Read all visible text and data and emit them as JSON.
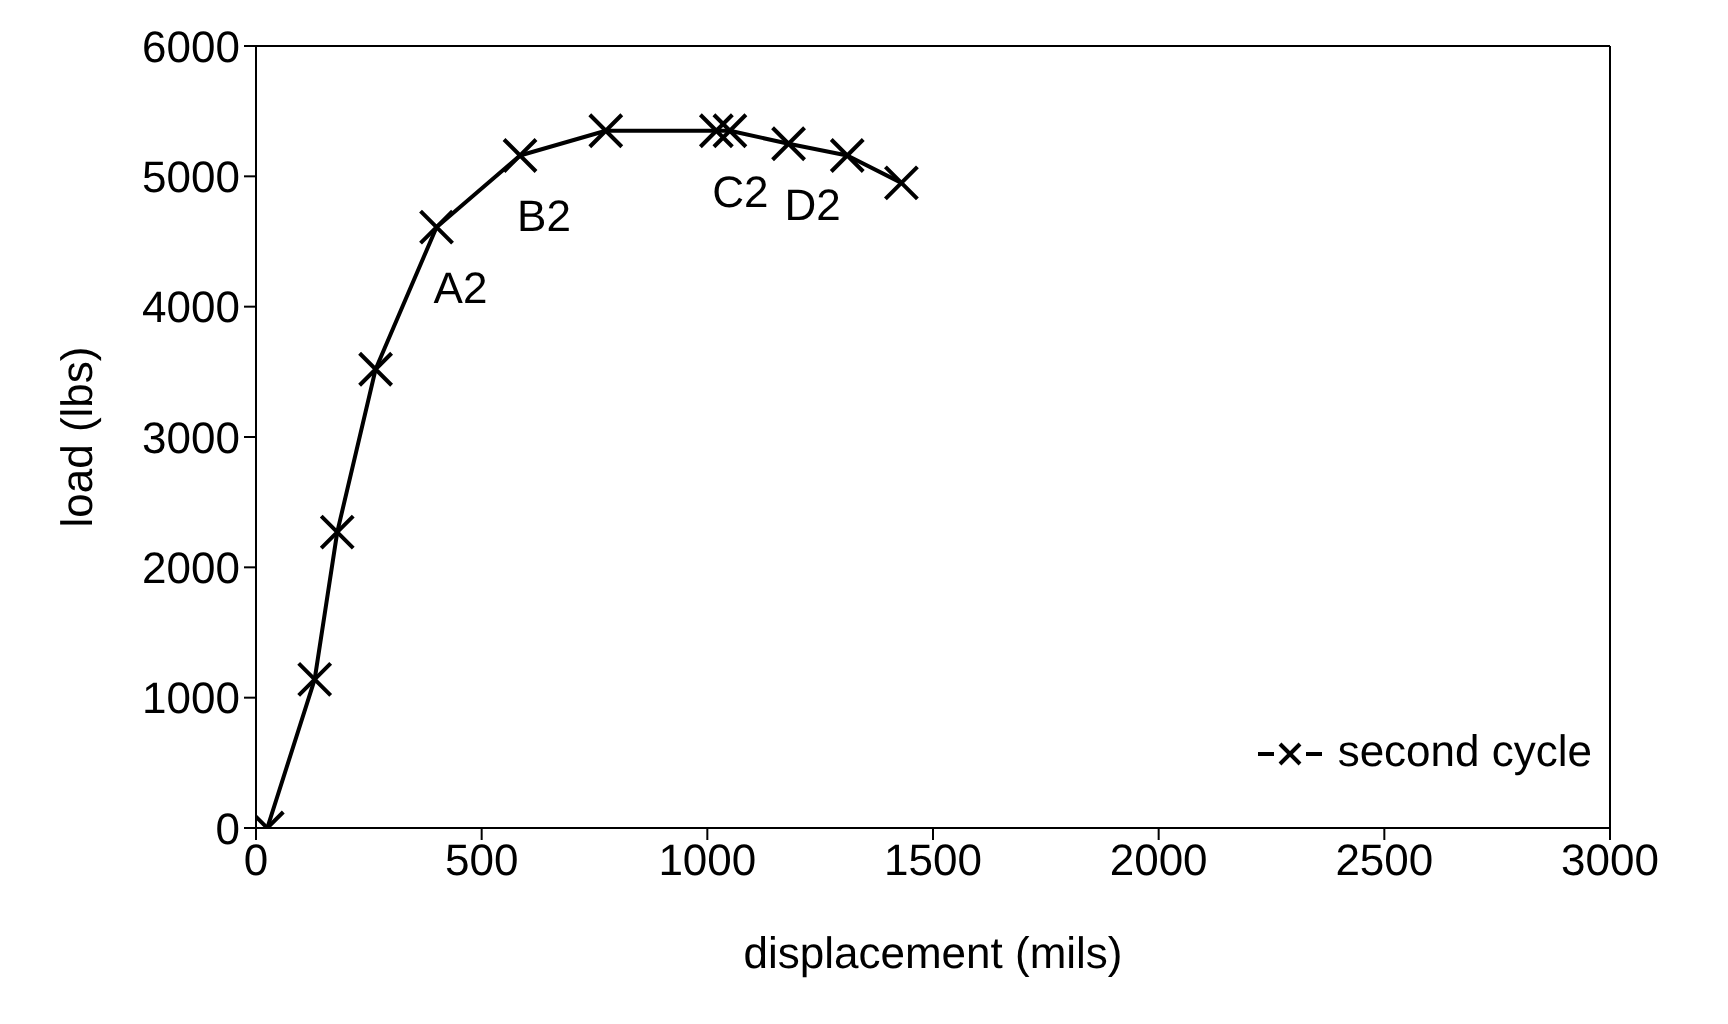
{
  "chart_data": {
    "type": "line",
    "xlabel": "displacement (mils)",
    "ylabel": "load (lbs)",
    "xlim": [
      0,
      3000
    ],
    "xticks": [
      0,
      500,
      1000,
      1500,
      2000,
      2500,
      3000
    ],
    "ylim": [
      0,
      6000
    ],
    "yticks": [
      0,
      1000,
      2000,
      3000,
      4000,
      5000,
      6000
    ],
    "legend": "bottom right",
    "marker": "cross",
    "line_style": "solid",
    "series": [
      {
        "name": "second cycle",
        "color": "#000000",
        "x": [
          25,
          130,
          180,
          265,
          400,
          585,
          775,
          1020,
          1050,
          1180,
          1310,
          1430
        ],
        "values": [
          0,
          1140,
          2270,
          3520,
          4610,
          5160,
          5350,
          5350,
          5350,
          5250,
          5160,
          4950
        ]
      }
    ],
    "annotations": [
      {
        "text": "A2",
        "x": 400,
        "y": 4610
      },
      {
        "text": "B2",
        "x": 585,
        "y": 5160
      },
      {
        "text": "C2",
        "x": 1020,
        "y": 5350
      },
      {
        "text": "D2",
        "x": 1180,
        "y": 5250
      }
    ]
  }
}
